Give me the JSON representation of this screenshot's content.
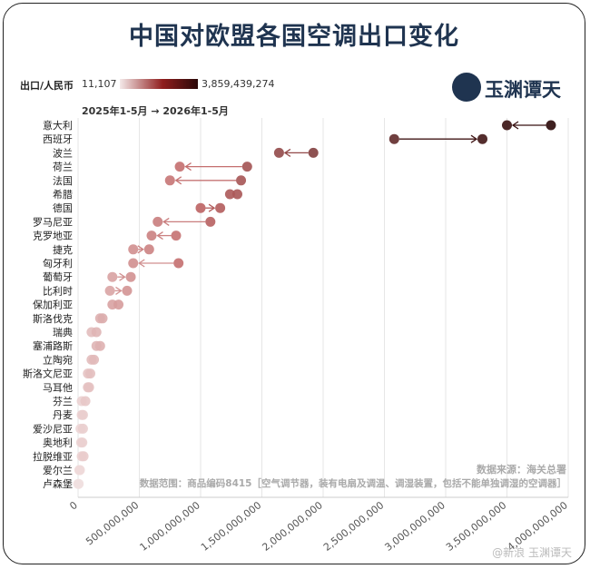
{
  "title": "中国对欧盟各国空调出口变化",
  "legend": {
    "label": "出口/人民币",
    "min": "11,107",
    "max": "3,859,439,274"
  },
  "period": "2025年1-5月 → 2026年1-5月",
  "logo": {
    "text": "玉渊谭天"
  },
  "source": "数据来源：海关总署",
  "scope": "数据范围：商品编码8415［空气调节器，装有电扇及调温、调湿装置，包括不能单独调湿的空调器］",
  "watermark": "@新浪 玉渊谭天",
  "colors": {
    "low": "#f4e9e9",
    "mid": "#c06565",
    "high": "#2a0808",
    "title": "#1f3450"
  },
  "chart_data": {
    "type": "dumbbell",
    "xlim": [
      0,
      4000000000
    ],
    "x_ticks": [
      0,
      500000000,
      1000000000,
      1500000000,
      2000000000,
      2500000000,
      3000000000,
      3500000000,
      4000000000
    ],
    "x_tick_labels": [
      "0",
      "500,000,000",
      "1,000,000,000",
      "1,500,000,000",
      "2,000,000,000",
      "2,500,000,000",
      "3,000,000,000",
      "3,500,000,000",
      "4,000,000,000"
    ],
    "grid": true,
    "series": [
      {
        "country": "意大利",
        "v2025": 3859000000,
        "v2026": 3500000000
      },
      {
        "country": "西班牙",
        "v2025": 2580000000,
        "v2026": 3300000000
      },
      {
        "country": "波兰",
        "v2025": 1920000000,
        "v2026": 1640000000
      },
      {
        "country": "荷兰",
        "v2025": 1380000000,
        "v2026": 830000000
      },
      {
        "country": "法国",
        "v2025": 1330000000,
        "v2026": 750000000
      },
      {
        "country": "希腊",
        "v2025": 1300000000,
        "v2026": 1240000000
      },
      {
        "country": "德国",
        "v2025": 1000000000,
        "v2026": 1160000000
      },
      {
        "country": "罗马尼亚",
        "v2025": 1080000000,
        "v2026": 650000000
      },
      {
        "country": "克罗地亚",
        "v2025": 800000000,
        "v2026": 600000000
      },
      {
        "country": "捷克",
        "v2025": 450000000,
        "v2026": 580000000
      },
      {
        "country": "匈牙利",
        "v2025": 820000000,
        "v2026": 450000000
      },
      {
        "country": "葡萄牙",
        "v2025": 280000000,
        "v2026": 430000000
      },
      {
        "country": "比利时",
        "v2025": 260000000,
        "v2026": 400000000
      },
      {
        "country": "保加利亚",
        "v2025": 280000000,
        "v2026": 330000000
      },
      {
        "country": "斯洛伐克",
        "v2025": 180000000,
        "v2026": 200000000
      },
      {
        "country": "瑞典",
        "v2025": 110000000,
        "v2026": 150000000
      },
      {
        "country": "塞浦路斯",
        "v2025": 150000000,
        "v2026": 180000000
      },
      {
        "country": "立陶宛",
        "v2025": 110000000,
        "v2026": 130000000
      },
      {
        "country": "斯洛文尼亚",
        "v2025": 80000000,
        "v2026": 100000000
      },
      {
        "country": "马耳他",
        "v2025": 80000000,
        "v2026": 90000000
      },
      {
        "country": "芬兰",
        "v2025": 30000000,
        "v2026": 60000000
      },
      {
        "country": "丹麦",
        "v2025": 30000000,
        "v2026": 40000000
      },
      {
        "country": "爱沙尼亚",
        "v2025": 20000000,
        "v2026": 40000000
      },
      {
        "country": "奥地利",
        "v2025": 25000000,
        "v2026": 35000000
      },
      {
        "country": "拉脱维亚",
        "v2025": 30000000,
        "v2026": 45000000
      },
      {
        "country": "爱尔兰",
        "v2025": 10000000,
        "v2026": 15000000
      },
      {
        "country": "卢森堡",
        "v2025": 11107,
        "v2026": 5000000
      }
    ]
  }
}
